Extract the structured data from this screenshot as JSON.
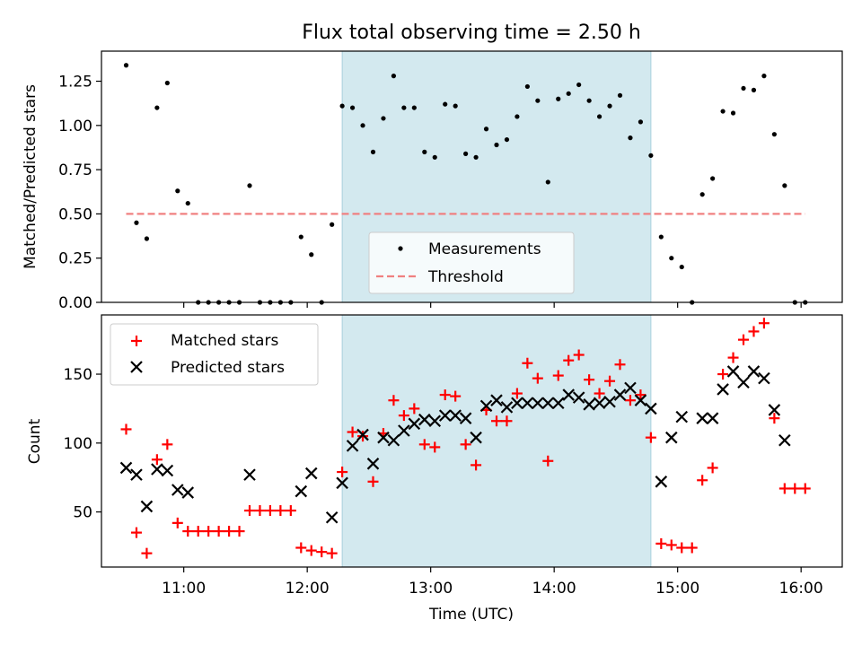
{
  "title": "Flux total observing time = 2.50 h",
  "xlabel": "Time (UTC)",
  "x_tick_labels": [
    "11:00",
    "12:00",
    "13:00",
    "14:00",
    "15:00",
    "16:00"
  ],
  "chart_data": [
    {
      "type": "scatter",
      "panel": "top",
      "ylabel": "Matched/Predicted stars",
      "ylim": [
        0,
        1.42
      ],
      "y_ticks": [
        "0.00",
        "0.25",
        "0.50",
        "0.75",
        "1.00",
        "1.25"
      ],
      "x_range": [
        "10:20",
        "16:20"
      ],
      "shaded_interval": [
        "12:17",
        "14:47"
      ],
      "shade_color": "#d3e9ef",
      "legend_position": "lower center",
      "series": [
        {
          "name": "Measurements",
          "color": "#000000",
          "marker": "dot",
          "points": [
            [
              "10:32",
              1.34
            ],
            [
              "10:37",
              0.45
            ],
            [
              "10:42",
              0.36
            ],
            [
              "10:47",
              1.1
            ],
            [
              "10:52",
              1.24
            ],
            [
              "10:57",
              0.63
            ],
            [
              "11:02",
              0.56
            ],
            [
              "11:07",
              0.0
            ],
            [
              "11:12",
              0.0
            ],
            [
              "11:17",
              0.0
            ],
            [
              "11:22",
              0.0
            ],
            [
              "11:27",
              0.0
            ],
            [
              "11:32",
              0.66
            ],
            [
              "11:37",
              0.0
            ],
            [
              "11:42",
              0.0
            ],
            [
              "11:47",
              0.0
            ],
            [
              "11:52",
              0.0
            ],
            [
              "11:57",
              0.37
            ],
            [
              "12:02",
              0.27
            ],
            [
              "12:07",
              0.0
            ],
            [
              "12:12",
              0.44
            ],
            [
              "12:17",
              1.11
            ],
            [
              "12:22",
              1.1
            ],
            [
              "12:27",
              1.0
            ],
            [
              "12:32",
              0.85
            ],
            [
              "12:37",
              1.04
            ],
            [
              "12:42",
              1.28
            ],
            [
              "12:47",
              1.1
            ],
            [
              "12:52",
              1.1
            ],
            [
              "12:57",
              0.85
            ],
            [
              "13:02",
              0.82
            ],
            [
              "13:07",
              1.12
            ],
            [
              "13:12",
              1.11
            ],
            [
              "13:17",
              0.84
            ],
            [
              "13:22",
              0.82
            ],
            [
              "13:27",
              0.98
            ],
            [
              "13:32",
              0.89
            ],
            [
              "13:37",
              0.92
            ],
            [
              "13:42",
              1.05
            ],
            [
              "13:47",
              1.22
            ],
            [
              "13:52",
              1.14
            ],
            [
              "13:57",
              0.68
            ],
            [
              "14:02",
              1.15
            ],
            [
              "14:07",
              1.18
            ],
            [
              "14:12",
              1.23
            ],
            [
              "14:17",
              1.14
            ],
            [
              "14:22",
              1.05
            ],
            [
              "14:27",
              1.11
            ],
            [
              "14:32",
              1.17
            ],
            [
              "14:37",
              0.93
            ],
            [
              "14:42",
              1.02
            ],
            [
              "14:47",
              0.83
            ],
            [
              "14:52",
              0.37
            ],
            [
              "14:57",
              0.25
            ],
            [
              "15:02",
              0.2
            ],
            [
              "15:07",
              0.0
            ],
            [
              "15:12",
              0.61
            ],
            [
              "15:17",
              0.7
            ],
            [
              "15:22",
              1.08
            ],
            [
              "15:27",
              1.07
            ],
            [
              "15:32",
              1.21
            ],
            [
              "15:37",
              1.2
            ],
            [
              "15:42",
              1.28
            ],
            [
              "15:47",
              0.95
            ],
            [
              "15:52",
              0.66
            ],
            [
              "15:57",
              0.0
            ],
            [
              "16:02",
              0.0
            ]
          ]
        },
        {
          "name": "Threshold",
          "color": "#f08080",
          "line_style": "dashed",
          "points": [
            [
              "10:32",
              0.5
            ],
            [
              "16:02",
              0.5
            ]
          ]
        }
      ]
    },
    {
      "type": "scatter",
      "panel": "bottom",
      "ylabel": "Count",
      "ylim": [
        10,
        193
      ],
      "y_ticks": [
        "50",
        "100",
        "150"
      ],
      "x_range": [
        "10:20",
        "16:20"
      ],
      "shaded_interval": [
        "12:17",
        "14:47"
      ],
      "shade_color": "#d3e9ef",
      "legend_position": "upper left",
      "series": [
        {
          "name": "Matched stars",
          "color": "#ff0000",
          "marker": "plus",
          "points": [
            [
              "10:32",
              110
            ],
            [
              "10:37",
              35
            ],
            [
              "10:42",
              20
            ],
            [
              "10:47",
              88
            ],
            [
              "10:52",
              99
            ],
            [
              "10:57",
              42
            ],
            [
              "11:02",
              36
            ],
            [
              "11:07",
              36
            ],
            [
              "11:12",
              36
            ],
            [
              "11:17",
              36
            ],
            [
              "11:22",
              36
            ],
            [
              "11:27",
              36
            ],
            [
              "11:32",
              51
            ],
            [
              "11:37",
              51
            ],
            [
              "11:42",
              51
            ],
            [
              "11:47",
              51
            ],
            [
              "11:52",
              51
            ],
            [
              "11:57",
              24
            ],
            [
              "12:02",
              22
            ],
            [
              "12:07",
              21
            ],
            [
              "12:12",
              20
            ],
            [
              "12:17",
              79
            ],
            [
              "12:22",
              108
            ],
            [
              "12:27",
              105
            ],
            [
              "12:32",
              72
            ],
            [
              "12:37",
              107
            ],
            [
              "12:42",
              131
            ],
            [
              "12:47",
              120
            ],
            [
              "12:52",
              125
            ],
            [
              "12:57",
              99
            ],
            [
              "13:02",
              97
            ],
            [
              "13:07",
              135
            ],
            [
              "13:12",
              134
            ],
            [
              "13:17",
              99
            ],
            [
              "13:22",
              84
            ],
            [
              "13:27",
              124
            ],
            [
              "13:32",
              116
            ],
            [
              "13:37",
              116
            ],
            [
              "13:42",
              136
            ],
            [
              "13:47",
              158
            ],
            [
              "13:52",
              147
            ],
            [
              "13:57",
              87
            ],
            [
              "14:02",
              149
            ],
            [
              "14:07",
              160
            ],
            [
              "14:12",
              164
            ],
            [
              "14:17",
              146
            ],
            [
              "14:22",
              136
            ],
            [
              "14:27",
              145
            ],
            [
              "14:32",
              157
            ],
            [
              "14:37",
              131
            ],
            [
              "14:42",
              135
            ],
            [
              "14:47",
              104
            ],
            [
              "14:52",
              27
            ],
            [
              "14:57",
              26
            ],
            [
              "15:02",
              24
            ],
            [
              "15:07",
              24
            ],
            [
              "15:12",
              73
            ],
            [
              "15:17",
              82
            ],
            [
              "15:22",
              150
            ],
            [
              "15:27",
              162
            ],
            [
              "15:32",
              175
            ],
            [
              "15:37",
              181
            ],
            [
              "15:42",
              187
            ],
            [
              "15:47",
              118
            ],
            [
              "15:52",
              67
            ],
            [
              "15:57",
              67
            ],
            [
              "16:02",
              67
            ]
          ]
        },
        {
          "name": "Predicted stars",
          "color": "#000000",
          "marker": "x",
          "points": [
            [
              "10:32",
              82
            ],
            [
              "10:37",
              77
            ],
            [
              "10:42",
              54
            ],
            [
              "10:47",
              81
            ],
            [
              "10:52",
              80
            ],
            [
              "10:57",
              66
            ],
            [
              "11:02",
              64
            ],
            [
              "11:32",
              77
            ],
            [
              "11:57",
              65
            ],
            [
              "12:02",
              78
            ],
            [
              "12:12",
              46
            ],
            [
              "12:17",
              71
            ],
            [
              "12:22",
              98
            ],
            [
              "12:27",
              106
            ],
            [
              "12:32",
              85
            ],
            [
              "12:37",
              104
            ],
            [
              "12:42",
              102
            ],
            [
              "12:47",
              109
            ],
            [
              "12:52",
              114
            ],
            [
              "12:57",
              117
            ],
            [
              "13:02",
              116
            ],
            [
              "13:07",
              120
            ],
            [
              "13:12",
              120
            ],
            [
              "13:17",
              118
            ],
            [
              "13:22",
              104
            ],
            [
              "13:27",
              127
            ],
            [
              "13:32",
              131
            ],
            [
              "13:37",
              126
            ],
            [
              "13:42",
              129
            ],
            [
              "13:47",
              129
            ],
            [
              "13:52",
              129
            ],
            [
              "13:57",
              129
            ],
            [
              "14:02",
              129
            ],
            [
              "14:07",
              135
            ],
            [
              "14:12",
              133
            ],
            [
              "14:17",
              128
            ],
            [
              "14:22",
              129
            ],
            [
              "14:27",
              130
            ],
            [
              "14:32",
              135
            ],
            [
              "14:37",
              140
            ],
            [
              "14:42",
              131
            ],
            [
              "14:47",
              125
            ],
            [
              "14:52",
              72
            ],
            [
              "14:57",
              104
            ],
            [
              "15:02",
              119
            ],
            [
              "15:12",
              118
            ],
            [
              "15:17",
              118
            ],
            [
              "15:22",
              139
            ],
            [
              "15:27",
              152
            ],
            [
              "15:32",
              144
            ],
            [
              "15:37",
              152
            ],
            [
              "15:42",
              147
            ],
            [
              "15:47",
              124
            ],
            [
              "15:52",
              102
            ]
          ]
        }
      ]
    }
  ]
}
